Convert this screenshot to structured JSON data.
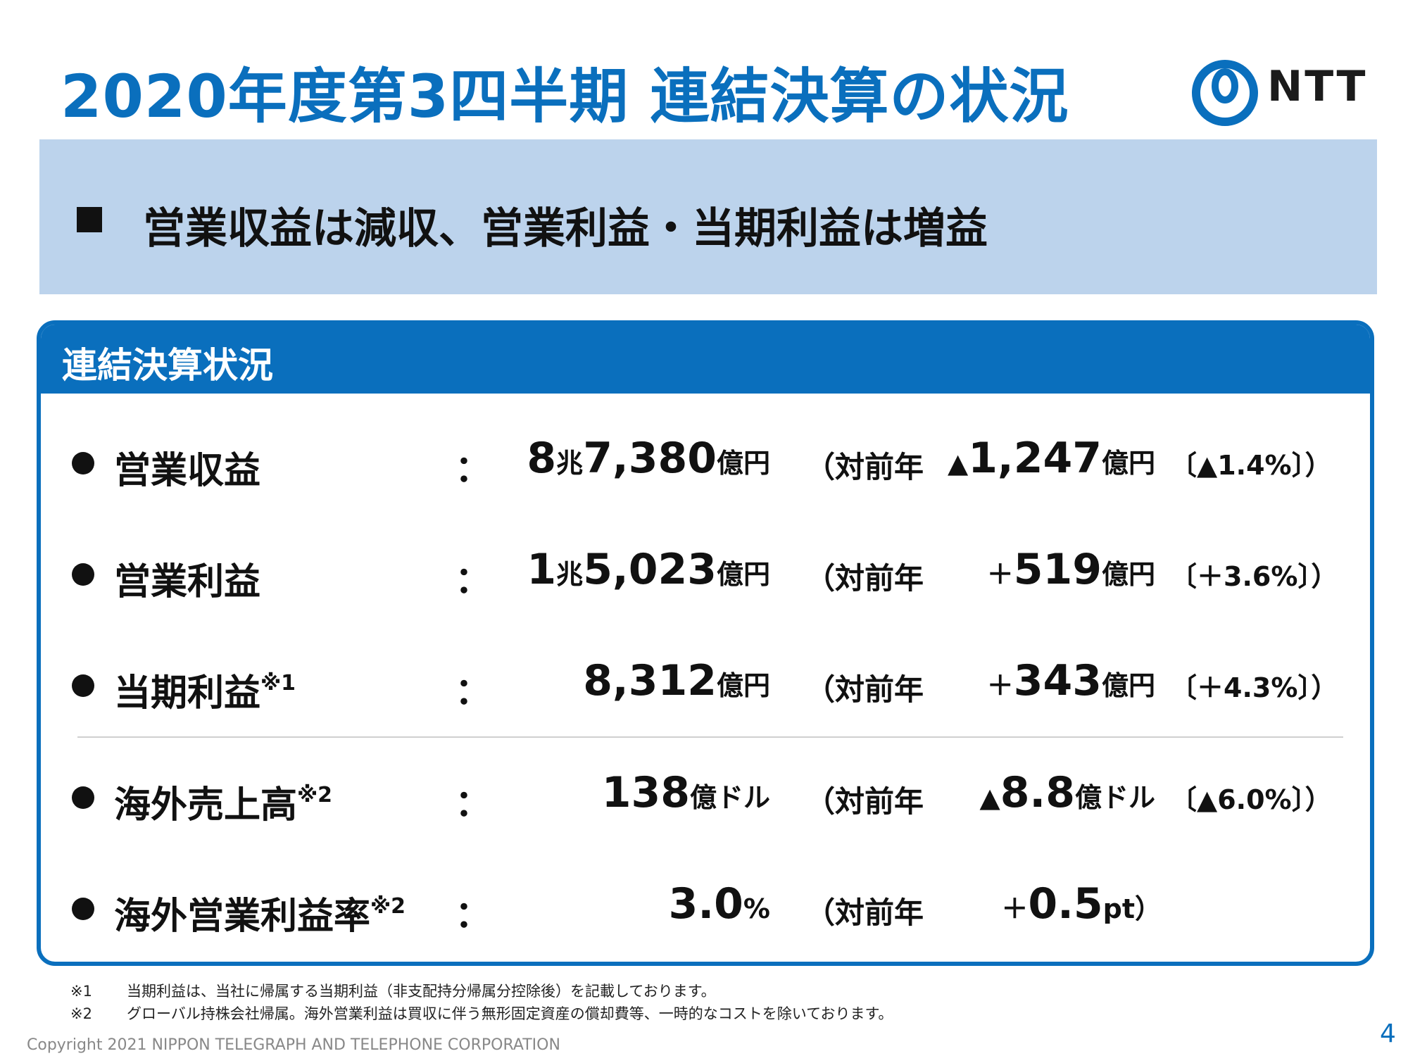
{
  "title": "2020年度第3四半期 連結決算の状況",
  "logo": {
    "text": "NTT",
    "color": "#0a6fbd"
  },
  "banner": {
    "text": "営業収益は減収、営業利益・当期利益は増益"
  },
  "panel": {
    "header": "連結決算状況",
    "colon": "：",
    "vs_label": "（対前年",
    "rows": [
      {
        "label": "営業収益",
        "note": "",
        "value_a": "8",
        "unit_a": "兆",
        "value_b": "7,380",
        "unit_b": "億円",
        "delta_sign": "▲",
        "delta_value": "1,247",
        "delta_unit": "億円",
        "delta_pct": "〔▲1.4%〕）"
      },
      {
        "label": "営業利益",
        "note": "",
        "value_a": "1",
        "unit_a": "兆",
        "value_b": "5,023",
        "unit_b": "億円",
        "delta_sign": "＋",
        "delta_value": "519",
        "delta_unit": "億円",
        "delta_pct": "〔＋3.6%〕）"
      },
      {
        "label": "当期利益",
        "note": "※1",
        "value_a": "",
        "unit_a": "",
        "value_b": "8,312",
        "unit_b": "億円",
        "delta_sign": "＋",
        "delta_value": "343",
        "delta_unit": "億円",
        "delta_pct": "〔＋4.3%〕）"
      },
      {
        "label": "海外売上高",
        "note": "※2",
        "value_a": "",
        "unit_a": "",
        "value_b": "138",
        "unit_b": "億ドル",
        "delta_sign": "▲",
        "delta_value": "8.8",
        "delta_unit": "億ドル",
        "delta_pct": "〔▲6.0%〕）"
      },
      {
        "label": "海外営業利益率",
        "note": "※2",
        "value_a": "",
        "unit_a": "",
        "value_b": "3.0",
        "unit_b": "%",
        "delta_sign": "＋",
        "delta_value": "0.5",
        "delta_unit": "pt）",
        "delta_pct": ""
      }
    ]
  },
  "footnotes": [
    {
      "mark": "※1",
      "text": "当期利益は、当社に帰属する当期利益（非支配持分帰属分控除後）を記載しております。"
    },
    {
      "mark": "※2",
      "text": "グローバル持株会社帰属。海外営業利益は買収に伴う無形固定資産の償却費等、一時的なコストを除いております。"
    }
  ],
  "copyright": "Copyright 2021 NIPPON TELEGRAPH AND TELEPHONE CORPORATION",
  "page_number": "4"
}
